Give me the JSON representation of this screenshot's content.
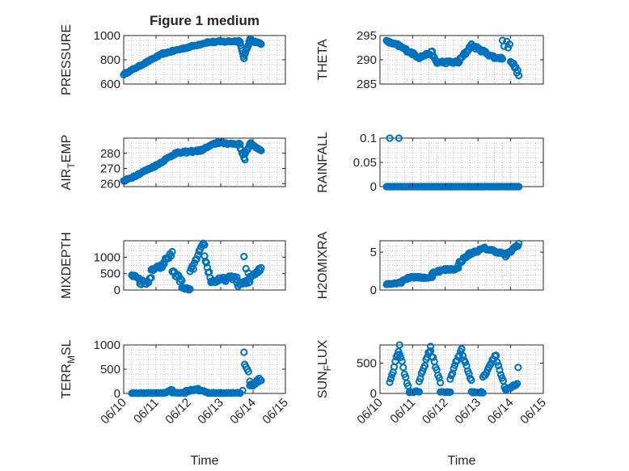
{
  "figure": {
    "title": "Figure 1 medium",
    "marker_color": "#0072BD"
  },
  "chart_data": [
    {
      "type": "scatter",
      "name": "pressure",
      "title": "Figure 1 medium",
      "ylabel": "PRESSURE",
      "ylabel_sub": "",
      "ylabel_tail": "",
      "ylim": [
        600,
        1000
      ],
      "yticks": [
        600,
        800,
        1000
      ],
      "yticklabels": [
        "600",
        "800",
        "1000"
      ],
      "xlim": [
        0,
        5
      ],
      "xticks": [
        0,
        1,
        2,
        3,
        4,
        5
      ],
      "show_xticklabels": false,
      "xlabel": "",
      "segments": [
        {
          "x0": 0.0,
          "x1": 1.2,
          "y0": 680,
          "y1": 850,
          "n": 36,
          "wiggle": 5
        },
        {
          "x0": 1.2,
          "x1": 2.6,
          "y0": 850,
          "y1": 945,
          "n": 38,
          "wiggle": 6
        },
        {
          "x0": 2.6,
          "x1": 3.6,
          "y0": 945,
          "y1": 955,
          "n": 26,
          "wiggle": 8
        },
        {
          "x0": 3.6,
          "x1": 3.72,
          "y0": 940,
          "y1": 810,
          "n": 7,
          "wiggle": 4
        },
        {
          "x0": 3.72,
          "x1": 3.9,
          "y0": 820,
          "y1": 960,
          "n": 9,
          "wiggle": 10
        },
        {
          "x0": 3.9,
          "x1": 4.25,
          "y0": 960,
          "y1": 935,
          "n": 14,
          "wiggle": 6
        }
      ],
      "points": []
    },
    {
      "type": "scatter",
      "name": "theta",
      "title": "",
      "ylabel": "THETA",
      "ylabel_sub": "",
      "ylabel_tail": "",
      "ylim": [
        285,
        295
      ],
      "yticks": [
        285,
        290,
        295
      ],
      "yticklabels": [
        "285",
        "290",
        "295"
      ],
      "xlim": [
        0,
        5
      ],
      "xticks": [
        0,
        1,
        2,
        3,
        4,
        5
      ],
      "show_xticklabels": false,
      "xlabel": "",
      "segments": [
        {
          "x0": 0.2,
          "x1": 0.55,
          "y0": 293.8,
          "y1": 293.0,
          "n": 14,
          "wiggle": 0.2
        },
        {
          "x0": 0.55,
          "x1": 1.2,
          "y0": 293.0,
          "y1": 290.5,
          "n": 22,
          "wiggle": 0.3
        },
        {
          "x0": 1.2,
          "x1": 1.6,
          "y0": 290.5,
          "y1": 291.5,
          "n": 12,
          "wiggle": 0.3
        },
        {
          "x0": 1.6,
          "x1": 1.75,
          "y0": 291.0,
          "y1": 289.3,
          "n": 6,
          "wiggle": 0.2
        },
        {
          "x0": 1.75,
          "x1": 2.4,
          "y0": 289.5,
          "y1": 289.5,
          "n": 18,
          "wiggle": 0.3
        },
        {
          "x0": 2.4,
          "x1": 2.8,
          "y0": 289.5,
          "y1": 293.0,
          "n": 14,
          "wiggle": 0.4
        },
        {
          "x0": 2.8,
          "x1": 3.5,
          "y0": 293.0,
          "y1": 290.5,
          "n": 22,
          "wiggle": 0.3
        },
        {
          "x0": 3.5,
          "x1": 3.75,
          "y0": 290.5,
          "y1": 290.3,
          "n": 8,
          "wiggle": 0.2
        },
        {
          "x0": 4.0,
          "x1": 4.25,
          "y0": 290.0,
          "y1": 287.0,
          "n": 9,
          "wiggle": 0.5
        }
      ],
      "points": [
        [
          3.75,
          294.0
        ],
        [
          3.8,
          292.8
        ],
        [
          3.88,
          293.8
        ],
        [
          3.92,
          292.5
        ],
        [
          3.97,
          293.2
        ]
      ]
    },
    {
      "type": "scatter",
      "name": "air-temp",
      "title": "",
      "ylabel": "AIR",
      "ylabel_sub": "T",
      "ylabel_tail": "EMP",
      "ylim": [
        258,
        290
      ],
      "yticks": [
        260,
        270,
        280
      ],
      "yticklabels": [
        "260",
        "270",
        "280"
      ],
      "xlim": [
        0,
        5
      ],
      "xticks": [
        0,
        1,
        2,
        3,
        4,
        5
      ],
      "show_xticklabels": false,
      "xlabel": "",
      "segments": [
        {
          "x0": 0.0,
          "x1": 1.0,
          "y0": 261.5,
          "y1": 272.0,
          "n": 30,
          "wiggle": 0.6
        },
        {
          "x0": 1.0,
          "x1": 1.6,
          "y0": 272.0,
          "y1": 280.0,
          "n": 18,
          "wiggle": 0.6
        },
        {
          "x0": 1.6,
          "x1": 2.4,
          "y0": 280.0,
          "y1": 282.0,
          "n": 22,
          "wiggle": 0.7
        },
        {
          "x0": 2.4,
          "x1": 2.9,
          "y0": 282.0,
          "y1": 287.2,
          "n": 15,
          "wiggle": 0.6
        },
        {
          "x0": 2.9,
          "x1": 3.6,
          "y0": 287.0,
          "y1": 286.0,
          "n": 22,
          "wiggle": 0.6
        },
        {
          "x0": 3.6,
          "x1": 3.75,
          "y0": 284.0,
          "y1": 275.5,
          "n": 6,
          "wiggle": 0.6
        },
        {
          "x0": 3.75,
          "x1": 3.92,
          "y0": 279.0,
          "y1": 287.0,
          "n": 7,
          "wiggle": 0.7
        },
        {
          "x0": 3.92,
          "x1": 4.25,
          "y0": 286.0,
          "y1": 282.0,
          "n": 12,
          "wiggle": 0.5
        }
      ],
      "points": []
    },
    {
      "type": "scatter",
      "name": "rainfall",
      "title": "",
      "ylabel": "RAINFALL",
      "ylabel_sub": "",
      "ylabel_tail": "",
      "ylim": [
        0,
        0.1
      ],
      "yticks": [
        0,
        0.05,
        0.1
      ],
      "yticklabels": [
        "0",
        "0.05",
        "0.1"
      ],
      "xlim": [
        0,
        5
      ],
      "xticks": [
        0,
        1,
        2,
        3,
        4,
        5
      ],
      "show_xticklabels": false,
      "xlabel": "",
      "segments": [
        {
          "x0": 0.2,
          "x1": 4.25,
          "y0": 0,
          "y1": 0,
          "n": 140,
          "wiggle": 0
        }
      ],
      "points": [
        [
          0.3,
          0.1
        ],
        [
          0.58,
          0.1
        ]
      ]
    },
    {
      "type": "scatter",
      "name": "mixdepth",
      "title": "",
      "ylabel": "MIXDEPTH",
      "ylabel_sub": "",
      "ylabel_tail": "",
      "ylim": [
        0,
        1500
      ],
      "yticks": [
        0,
        500,
        1000
      ],
      "yticklabels": [
        "0",
        "500",
        "1000"
      ],
      "xlim": [
        0,
        5
      ],
      "xticks": [
        0,
        1,
        2,
        3,
        4,
        5
      ],
      "show_xticklabels": false,
      "xlabel": "",
      "segments": [
        {
          "x0": 0.25,
          "x1": 0.5,
          "y0": 480,
          "y1": 300,
          "n": 8,
          "wiggle": 40
        },
        {
          "x0": 0.5,
          "x1": 0.85,
          "y0": 200,
          "y1": 300,
          "n": 10,
          "wiggle": 90
        },
        {
          "x0": 0.85,
          "x1": 1.25,
          "y0": 600,
          "y1": 750,
          "n": 14,
          "wiggle": 60
        },
        {
          "x0": 1.25,
          "x1": 1.5,
          "y0": 900,
          "y1": 1100,
          "n": 8,
          "wiggle": 80
        },
        {
          "x0": 1.5,
          "x1": 1.8,
          "y0": 600,
          "y1": 250,
          "n": 10,
          "wiggle": 80
        },
        {
          "x0": 1.8,
          "x1": 2.05,
          "y0": 60,
          "y1": 20,
          "n": 9,
          "wiggle": 30
        },
        {
          "x0": 2.05,
          "x1": 2.5,
          "y0": 500,
          "y1": 1450,
          "n": 14,
          "wiggle": 100
        },
        {
          "x0": 2.5,
          "x1": 2.7,
          "y0": 1000,
          "y1": 300,
          "n": 8,
          "wiggle": 80
        },
        {
          "x0": 2.7,
          "x1": 3.5,
          "y0": 250,
          "y1": 400,
          "n": 24,
          "wiggle": 70
        },
        {
          "x0": 3.5,
          "x1": 3.9,
          "y0": 150,
          "y1": 250,
          "n": 12,
          "wiggle": 80
        },
        {
          "x0": 3.9,
          "x1": 4.25,
          "y0": 400,
          "y1": 650,
          "n": 12,
          "wiggle": 60
        }
      ],
      "points": [
        [
          3.72,
          1020
        ],
        [
          3.78,
          650
        ],
        [
          3.85,
          520
        ]
      ]
    },
    {
      "type": "scatter",
      "name": "h2omixra",
      "title": "",
      "ylabel": "H2OMIXRA",
      "ylabel_sub": "",
      "ylabel_tail": "",
      "ylim": [
        0,
        6.5
      ],
      "yticks": [
        0,
        5
      ],
      "yticklabels": [
        "0",
        "5"
      ],
      "xlim": [
        0,
        5
      ],
      "xticks": [
        0,
        1,
        2,
        3,
        4,
        5
      ],
      "show_xticklabels": false,
      "xlabel": "",
      "segments": [
        {
          "x0": 0.2,
          "x1": 0.65,
          "y0": 0.8,
          "y1": 1.0,
          "n": 14,
          "wiggle": 0.1
        },
        {
          "x0": 0.65,
          "x1": 1.0,
          "y0": 1.2,
          "y1": 1.8,
          "n": 11,
          "wiggle": 0.12
        },
        {
          "x0": 1.0,
          "x1": 1.6,
          "y0": 1.7,
          "y1": 1.6,
          "n": 18,
          "wiggle": 0.12
        },
        {
          "x0": 1.6,
          "x1": 2.0,
          "y0": 2.3,
          "y1": 2.7,
          "n": 12,
          "wiggle": 0.15
        },
        {
          "x0": 2.0,
          "x1": 2.4,
          "y0": 2.7,
          "y1": 2.8,
          "n": 12,
          "wiggle": 0.15
        },
        {
          "x0": 2.4,
          "x1": 2.75,
          "y0": 3.5,
          "y1": 4.8,
          "n": 12,
          "wiggle": 0.2
        },
        {
          "x0": 2.75,
          "x1": 3.2,
          "y0": 4.8,
          "y1": 5.5,
          "n": 14,
          "wiggle": 0.15
        },
        {
          "x0": 3.2,
          "x1": 3.85,
          "y0": 5.5,
          "y1": 4.7,
          "n": 20,
          "wiggle": 0.15
        },
        {
          "x0": 3.85,
          "x1": 4.25,
          "y0": 4.5,
          "y1": 6.1,
          "n": 14,
          "wiggle": 0.2
        }
      ],
      "points": []
    },
    {
      "type": "scatter",
      "name": "terr-msl",
      "title": "",
      "ylabel": "TERR",
      "ylabel_sub": "M",
      "ylabel_tail": "SL",
      "ylim": [
        0,
        1000
      ],
      "yticks": [
        0,
        500,
        1000
      ],
      "yticklabels": [
        "0",
        "500",
        "1000"
      ],
      "xlim": [
        0,
        5
      ],
      "xticks": [
        0,
        1,
        2,
        3,
        4,
        5
      ],
      "show_xticklabels": true,
      "xlabel": "Time",
      "xticklabels": [
        "06/10",
        "06/11",
        "06/12",
        "06/13",
        "06/14",
        "06/15"
      ],
      "segments": [
        {
          "x0": 0.25,
          "x1": 1.3,
          "y0": 5,
          "y1": 10,
          "n": 34,
          "wiggle": 5
        },
        {
          "x0": 1.3,
          "x1": 1.5,
          "y0": 30,
          "y1": 70,
          "n": 6,
          "wiggle": 15
        },
        {
          "x0": 1.5,
          "x1": 1.9,
          "y0": 20,
          "y1": 10,
          "n": 12,
          "wiggle": 8
        },
        {
          "x0": 1.9,
          "x1": 2.3,
          "y0": 40,
          "y1": 100,
          "n": 12,
          "wiggle": 20
        },
        {
          "x0": 2.3,
          "x1": 2.6,
          "y0": 70,
          "y1": 20,
          "n": 9,
          "wiggle": 12
        },
        {
          "x0": 2.6,
          "x1": 3.6,
          "y0": 10,
          "y1": 10,
          "n": 30,
          "wiggle": 6
        },
        {
          "x0": 3.9,
          "x1": 4.25,
          "y0": 150,
          "y1": 300,
          "n": 12,
          "wiggle": 40
        }
      ],
      "points": [
        [
          3.68,
          60
        ],
        [
          3.72,
          850
        ],
        [
          3.74,
          600
        ],
        [
          3.78,
          550
        ],
        [
          3.82,
          500
        ],
        [
          3.86,
          450
        ],
        [
          3.9,
          250
        ]
      ]
    },
    {
      "type": "scatter",
      "name": "sun-flux",
      "title": "",
      "ylabel": "SUN",
      "ylabel_sub": "F",
      "ylabel_tail": "LUX",
      "ylim": [
        0,
        800
      ],
      "yticks": [
        0,
        500
      ],
      "yticklabels": [
        "0",
        "500"
      ],
      "xlim": [
        0,
        5
      ],
      "xticks": [
        0,
        1,
        2,
        3,
        4,
        5
      ],
      "show_xticklabels": true,
      "xlabel": "Time",
      "xticklabels": [
        "06/10",
        "06/11",
        "06/12",
        "06/13",
        "06/14",
        "06/15"
      ],
      "segments": [
        {
          "x0": 0.3,
          "x1": 0.6,
          "y0": 180,
          "y1": 780,
          "n": 10,
          "wiggle": 30
        },
        {
          "x0": 0.6,
          "x1": 0.9,
          "y0": 650,
          "y1": 30,
          "n": 9,
          "wiggle": 40
        },
        {
          "x0": 0.9,
          "x1": 1.2,
          "y0": 20,
          "y1": 40,
          "n": 8,
          "wiggle": 15
        },
        {
          "x0": 1.2,
          "x1": 1.55,
          "y0": 200,
          "y1": 760,
          "n": 11,
          "wiggle": 30
        },
        {
          "x0": 1.55,
          "x1": 1.85,
          "y0": 700,
          "y1": 200,
          "n": 9,
          "wiggle": 40
        },
        {
          "x0": 1.85,
          "x1": 2.15,
          "y0": 20,
          "y1": 20,
          "n": 8,
          "wiggle": 12
        },
        {
          "x0": 2.15,
          "x1": 2.5,
          "y0": 250,
          "y1": 760,
          "n": 11,
          "wiggle": 30
        },
        {
          "x0": 2.5,
          "x1": 2.8,
          "y0": 700,
          "y1": 200,
          "n": 9,
          "wiggle": 40
        },
        {
          "x0": 2.8,
          "x1": 3.15,
          "y0": 20,
          "y1": 20,
          "n": 9,
          "wiggle": 12
        },
        {
          "x0": 3.15,
          "x1": 3.55,
          "y0": 250,
          "y1": 660,
          "n": 12,
          "wiggle": 30
        },
        {
          "x0": 3.55,
          "x1": 3.85,
          "y0": 600,
          "y1": 30,
          "n": 9,
          "wiggle": 40
        },
        {
          "x0": 3.85,
          "x1": 4.2,
          "y0": 50,
          "y1": 150,
          "n": 10,
          "wiggle": 25
        }
      ],
      "points": [
        [
          4.23,
          430
        ]
      ]
    }
  ]
}
